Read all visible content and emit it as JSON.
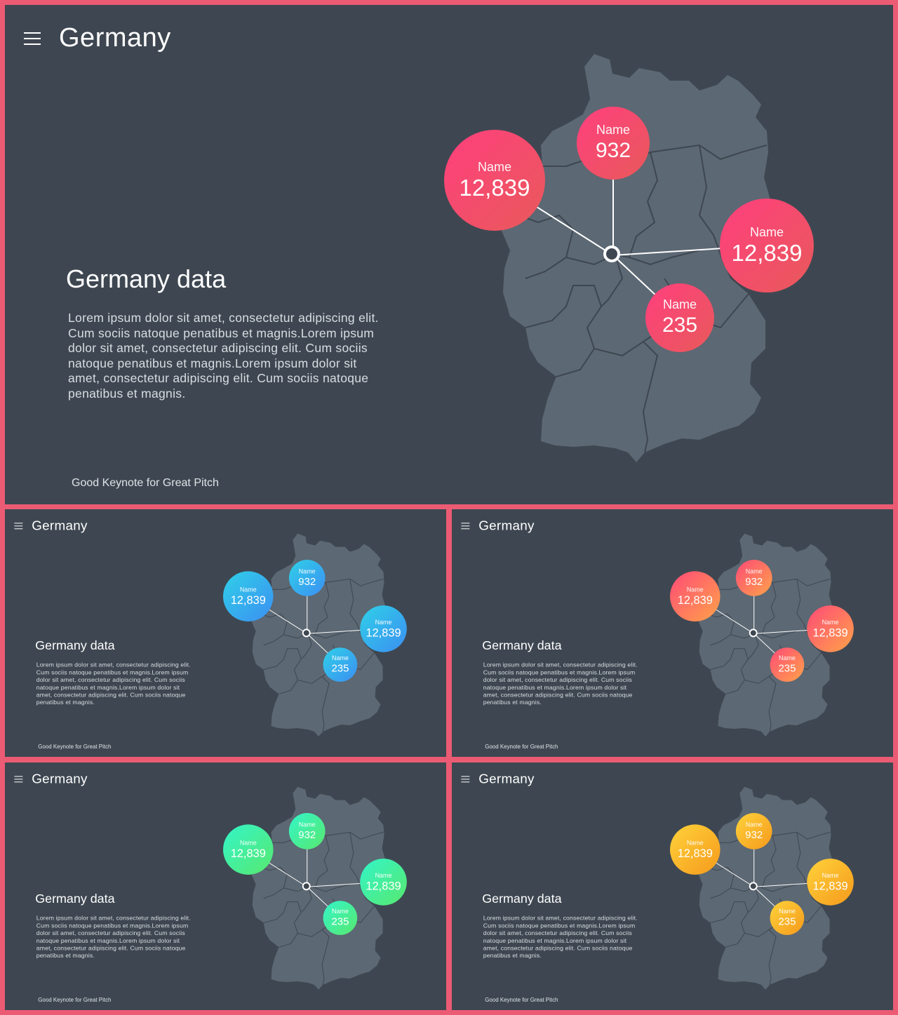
{
  "colors": {
    "frame": "#ec5b74",
    "slide_background": "#3e4751",
    "map_fill": "#5c6873",
    "map_borders": "#3e4751",
    "connector": "#ffffff"
  },
  "slides": [
    {
      "id": "main",
      "title": "Germany",
      "section_title": "Germany data",
      "body": "Lorem ipsum dolor sit amet, consectetur adipiscing elit. Cum sociis natoque penatibus et magnis.Lorem ipsum dolor sit amet, consectetur adipiscing elit. Cum sociis natoque penatibus et magnis.Lorem ipsum dolor sit amet, consectetur adipiscing elit. Cum sociis natoque penatibus et magnis.",
      "footer": "Good Keynote for Great Pitch",
      "gradient": [
        "#ff3f7e",
        "#e85a5a"
      ],
      "bubbles": [
        {
          "label": "Name",
          "value": "12,839"
        },
        {
          "label": "Name",
          "value": "932"
        },
        {
          "label": "Name",
          "value": "12,839"
        },
        {
          "label": "Name",
          "value": "235"
        }
      ]
    },
    {
      "id": "blue",
      "title": "Germany",
      "section_title": "Germany data",
      "body": "Lorem ipsum dolor sit amet, consectetur adipiscing elit. Cum sociis natoque penatibus et magnis.Lorem ipsum dolor sit amet, consectetur adipiscing elit. Cum sociis natoque penatibus et magnis.Lorem ipsum dolor sit amet, consectetur adipiscing elit. Cum sociis natoque penatibus et magnis.",
      "footer": "Good Keynote for Great Pitch",
      "gradient": [
        "#2fd0e8",
        "#3c8ff2"
      ],
      "bubbles": [
        {
          "label": "Name",
          "value": "12,839"
        },
        {
          "label": "Name",
          "value": "932"
        },
        {
          "label": "Name",
          "value": "12,839"
        },
        {
          "label": "Name",
          "value": "235"
        }
      ]
    },
    {
      "id": "orange",
      "title": "Germany",
      "section_title": "Germany data",
      "body": "Lorem ipsum dolor sit amet, consectetur adipiscing elit. Cum sociis natoque penatibus et magnis.Lorem ipsum dolor sit amet, consectetur adipiscing elit. Cum sociis natoque penatibus et magnis.Lorem ipsum dolor sit amet, consectetur adipiscing elit. Cum sociis natoque penatibus et magnis.",
      "footer": "Good Keynote for Great Pitch",
      "gradient": [
        "#ff4a77",
        "#ffa349"
      ],
      "bubbles": [
        {
          "label": "Name",
          "value": "12,839"
        },
        {
          "label": "Name",
          "value": "932"
        },
        {
          "label": "Name",
          "value": "12,839"
        },
        {
          "label": "Name",
          "value": "235"
        }
      ]
    },
    {
      "id": "green",
      "title": "Germany",
      "section_title": "Germany data",
      "body": "Lorem ipsum dolor sit amet, consectetur adipiscing elit. Cum sociis natoque penatibus et magnis.Lorem ipsum dolor sit amet, consectetur adipiscing elit. Cum sociis natoque penatibus et magnis.Lorem ipsum dolor sit amet, consectetur adipiscing elit. Cum sociis natoque penatibus et magnis.",
      "footer": "Good Keynote for Great Pitch",
      "gradient": [
        "#33f5c9",
        "#58e86e"
      ],
      "bubbles": [
        {
          "label": "Name",
          "value": "12,839"
        },
        {
          "label": "Name",
          "value": "932"
        },
        {
          "label": "Name",
          "value": "12,839"
        },
        {
          "label": "Name",
          "value": "235"
        }
      ]
    },
    {
      "id": "yellow",
      "title": "Germany",
      "section_title": "Germany data",
      "body": "Lorem ipsum dolor sit amet, consectetur adipiscing elit. Cum sociis natoque penatibus et magnis.Lorem ipsum dolor sit amet, consectetur adipiscing elit. Cum sociis natoque penatibus et magnis.Lorem ipsum dolor sit amet, consectetur adipiscing elit. Cum sociis natoque penatibus et magnis.",
      "footer": "Good Keynote for Great Pitch",
      "gradient": [
        "#ffd23a",
        "#f59a1c"
      ],
      "bubbles": [
        {
          "label": "Name",
          "value": "12,839"
        },
        {
          "label": "Name",
          "value": "932"
        },
        {
          "label": "Name",
          "value": "12,839"
        },
        {
          "label": "Name",
          "value": "235"
        }
      ]
    }
  ]
}
